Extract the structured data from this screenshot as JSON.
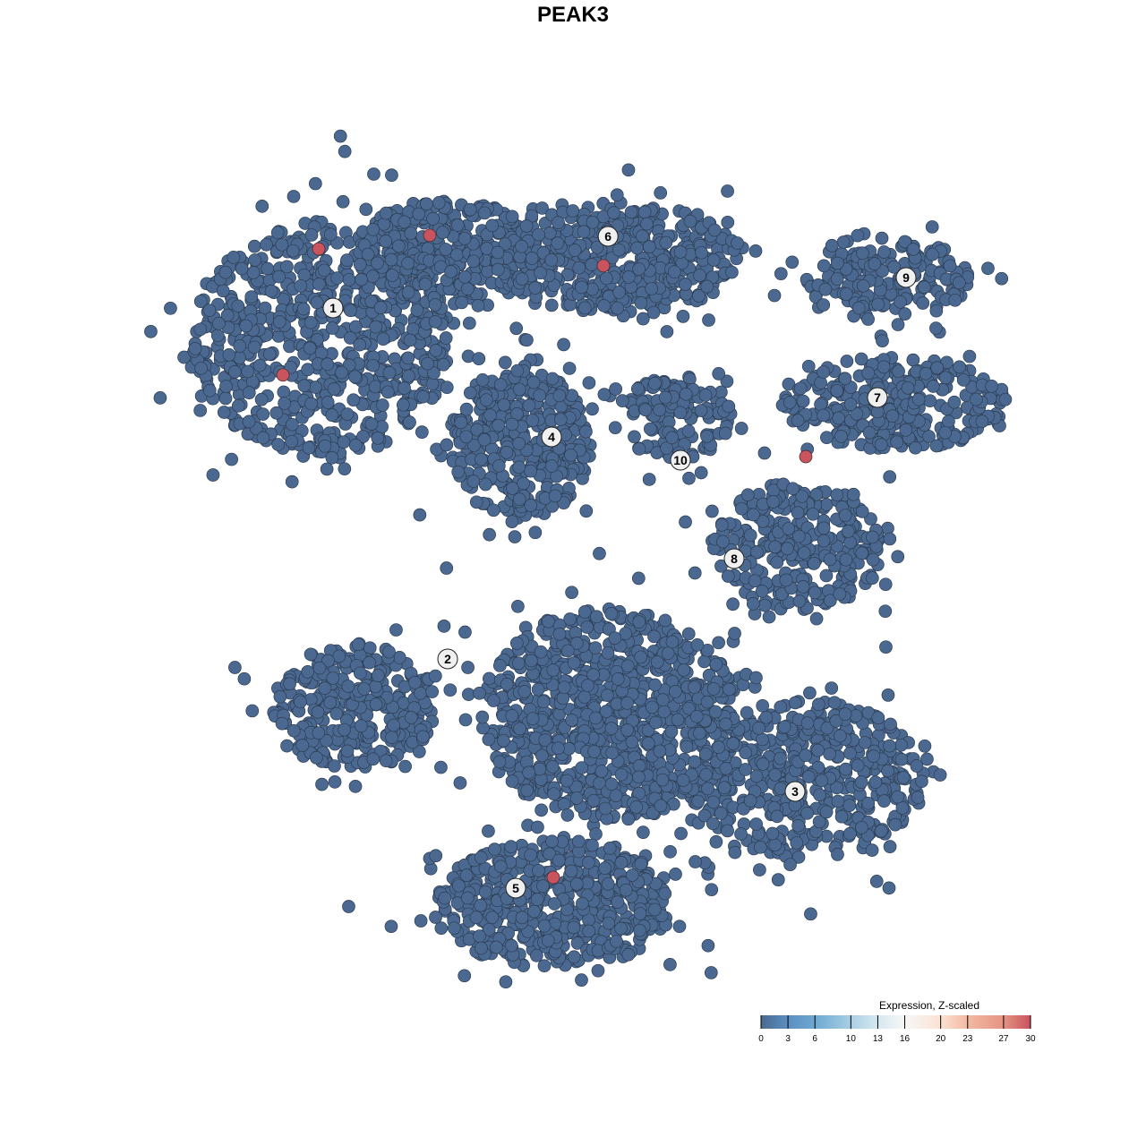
{
  "chart_data": {
    "type": "scatter",
    "title": "PEAK3",
    "xlabel": "",
    "ylabel": "",
    "grid": false,
    "xlim": [
      -16,
      16
    ],
    "ylim": [
      -16,
      16
    ],
    "point_color_default": "#4b6990",
    "point_color_high": "#c9545e",
    "clusters": [
      {
        "label": "1",
        "label_pos": [
          -6.7,
          7.4
        ],
        "blobs": [
          {
            "center": [
              -7,
              6.5
            ],
            "spread": [
              3.6,
              3.3
            ],
            "n": 700
          },
          {
            "center": [
              -3.5,
              9
            ],
            "spread": [
              2.6,
              1.4
            ],
            "n": 350
          }
        ]
      },
      {
        "label": "6",
        "label_pos": [
          0.98,
          9.4
        ],
        "blobs": [
          {
            "center": [
              1.25,
              8.75
            ],
            "spread": [
              3.4,
              1.6
            ],
            "n": 450
          }
        ]
      },
      {
        "label": "4",
        "label_pos": [
          -0.6,
          3.8
        ],
        "blobs": [
          {
            "center": [
              -1.5,
              3.6
            ],
            "spread": [
              2.0,
              2.1
            ],
            "n": 400
          }
        ]
      },
      {
        "label": "10",
        "label_pos": [
          3.0,
          3.15
        ],
        "blobs": [
          {
            "center": [
              2.9,
              4.3
            ],
            "spread": [
              1.7,
              1.2
            ],
            "n": 130
          }
        ]
      },
      {
        "label": "7",
        "label_pos": [
          8.5,
          4.9
        ],
        "blobs": [
          {
            "center": [
              9,
              4.75
            ],
            "spread": [
              3.1,
              1.3
            ],
            "n": 300
          }
        ]
      },
      {
        "label": "9",
        "label_pos": [
          9.3,
          8.25
        ],
        "blobs": [
          {
            "center": [
              8.75,
              8.25
            ],
            "spread": [
              2.3,
              1.2
            ],
            "n": 180
          }
        ]
      },
      {
        "label": "8",
        "label_pos": [
          4.5,
          0.4
        ],
        "blobs": [
          {
            "center": [
              6.25,
              0.75
            ],
            "spread": [
              2.4,
              1.8
            ],
            "n": 300
          }
        ]
      },
      {
        "label": "2",
        "label_pos": [
          -3.5,
          -2.4
        ],
        "blobs": [
          {
            "center": [
              -6.1,
              -3.75
            ],
            "spread": [
              2.3,
              1.8
            ],
            "n": 300
          }
        ]
      },
      {
        "label": "3",
        "label_pos": [
          6.2,
          -6.1
        ],
        "blobs": [
          {
            "center": [
              6.5,
              -5.75
            ],
            "spread": [
              3.3,
              2.2
            ],
            "n": 500
          },
          {
            "center": [
              1,
              -4
            ],
            "spread": [
              3.6,
              3.0
            ],
            "n": 900
          }
        ]
      },
      {
        "label": "5",
        "label_pos": [
          -1.6,
          -8.8
        ],
        "blobs": [
          {
            "center": [
              -0.5,
              -9.25
            ],
            "spread": [
              3.3,
              1.8
            ],
            "n": 500
          }
        ]
      }
    ],
    "highlighted_points": [
      {
        "x": -7.1,
        "y": 9.05,
        "value": 30
      },
      {
        "x": -4.0,
        "y": 9.43,
        "value": 30
      },
      {
        "x": 0.85,
        "y": 8.58,
        "value": 30
      },
      {
        "x": -8.1,
        "y": 5.53,
        "value": 30
      },
      {
        "x": 6.5,
        "y": 3.25,
        "value": 30
      },
      {
        "x": -0.55,
        "y": -8.5,
        "value": 30
      }
    ],
    "legend": {
      "title": "Expression, Z-scaled",
      "placement": "bottom-right",
      "range": [
        0,
        30
      ],
      "ticks": [
        "0",
        "3",
        "6",
        "10",
        "13",
        "16",
        "20",
        "23",
        "27",
        "30"
      ],
      "tick_values": [
        0,
        3,
        6,
        10,
        13,
        16,
        20,
        23,
        27,
        30
      ],
      "colors": [
        "#4a6990",
        "#5d8fc0",
        "#6ea8d2",
        "#a8d0e4",
        "#d6e8f1",
        "#f7f7f7",
        "#fbe2d4",
        "#f3b9a1",
        "#e49483",
        "#c9515e"
      ]
    }
  }
}
